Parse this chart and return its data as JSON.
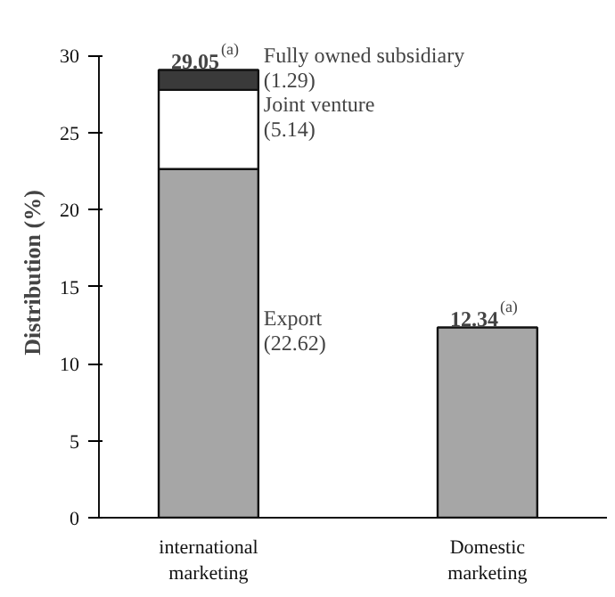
{
  "chart_data": {
    "type": "bar",
    "stacked": true,
    "ylabel": "Distribution (%)",
    "categories": [
      "international\nmarketing",
      "Domestic\nmarketing"
    ],
    "series": [
      {
        "name": "Export",
        "color": "#a6a6a6",
        "values": [
          22.62,
          12.34
        ]
      },
      {
        "name": "Joint venture",
        "color": "#ffffff",
        "values": [
          5.14,
          null
        ]
      },
      {
        "name": "Fully owned subsidiary",
        "color": "#3a3a3a",
        "values": [
          1.29,
          null
        ]
      }
    ],
    "annotations": [
      "(22.62)",
      "(5.14)",
      "(1.29)"
    ],
    "totals": [
      "29.05$^{(a)}$",
      "12.34$^{(a)}$"
    ],
    "ylim": [
      0,
      30
    ],
    "yticks": [
      0,
      5,
      10,
      15,
      20,
      25,
      30
    ],
    "grid": false,
    "legend": false
  }
}
